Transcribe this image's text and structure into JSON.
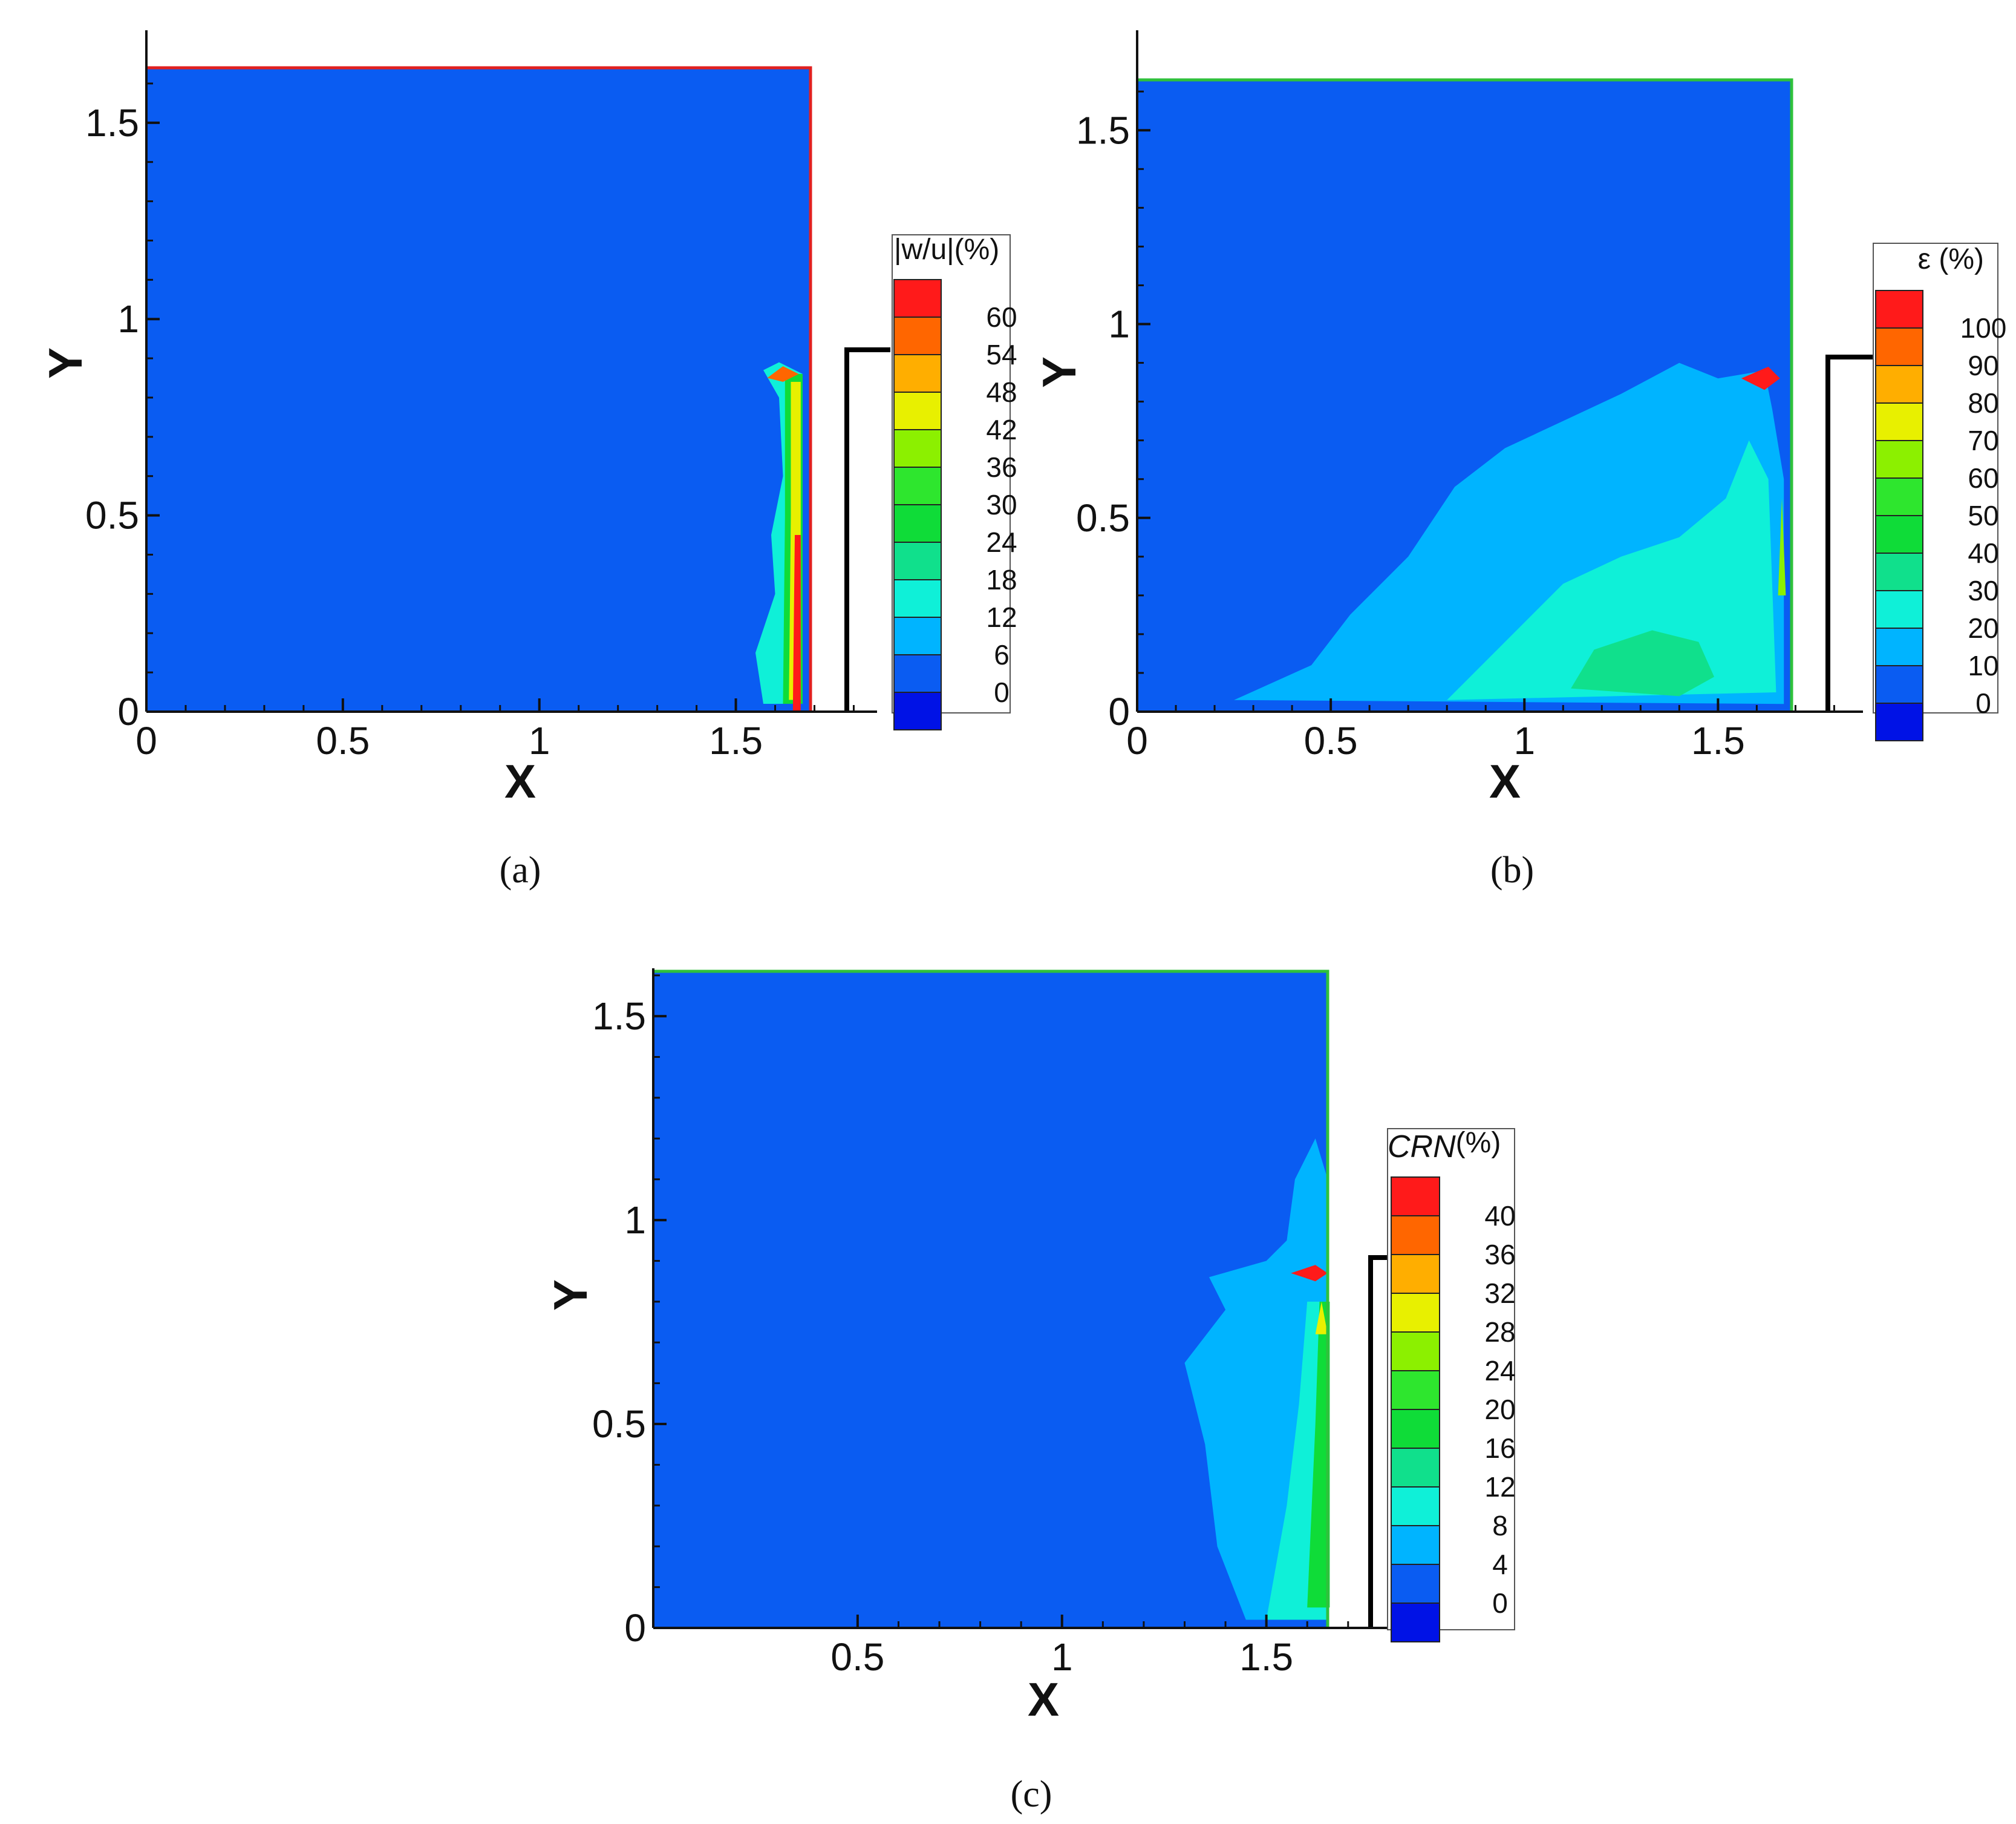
{
  "colors": {
    "background_blue": "#0a5cf2",
    "frame_red": "#e02020",
    "frame_green": "#2fc13c",
    "obstacle": "#000000"
  },
  "chart_data": [
    {
      "type": "heatmap",
      "panel": "a",
      "caption": "(a)",
      "xlabel": "X",
      "ylabel": "Y",
      "xlim": [
        0,
        1.9
      ],
      "ylim": [
        0,
        1.7
      ],
      "xticks": [
        0,
        0.5,
        1,
        1.5
      ],
      "xtick_labels": [
        "0",
        "0.5",
        "1",
        "1.5"
      ],
      "yticks": [
        0,
        0.5,
        1,
        1.5
      ],
      "ytick_labels": [
        "0",
        "0.5",
        "1",
        "1.5"
      ],
      "domain_x": [
        0,
        1.69
      ],
      "domain_y": [
        0,
        1.64
      ],
      "frame_color": "#e02020",
      "legend": {
        "title": "|w/u|(%)",
        "title_italic": "",
        "title_suffix": "",
        "levels": [
          "60",
          "54",
          "48",
          "42",
          "36",
          "30",
          "24",
          "18",
          "12",
          "6",
          "0"
        ]
      },
      "regions": [
        {
          "level": 12,
          "points": [
            [
              1.57,
              0.02
            ],
            [
              1.55,
              0.15
            ],
            [
              1.6,
              0.3
            ],
            [
              1.59,
              0.45
            ],
            [
              1.62,
              0.6
            ],
            [
              1.61,
              0.8
            ],
            [
              1.57,
              0.87
            ],
            [
              1.61,
              0.89
            ],
            [
              1.67,
              0.86
            ],
            [
              1.67,
              0.02
            ]
          ]
        },
        {
          "level": 24,
          "points": [
            [
              1.62,
              0.02
            ],
            [
              1.625,
              0.5
            ],
            [
              1.625,
              0.86
            ],
            [
              1.67,
              0.86
            ],
            [
              1.67,
              0.02
            ]
          ]
        },
        {
          "level": 42,
          "points": [
            [
              1.635,
              0.03
            ],
            [
              1.64,
              0.5
            ],
            [
              1.64,
              0.84
            ],
            [
              1.665,
              0.84
            ],
            [
              1.665,
              0.03
            ]
          ]
        },
        {
          "level": 60,
          "points": [
            [
              1.645,
              0.0
            ],
            [
              1.65,
              0.45
            ],
            [
              1.665,
              0.45
            ],
            [
              1.665,
              0.0
            ]
          ]
        },
        {
          "level": 54,
          "points": [
            [
              1.58,
              0.85
            ],
            [
              1.62,
              0.88
            ],
            [
              1.66,
              0.86
            ],
            [
              1.62,
              0.84
            ]
          ]
        }
      ]
    },
    {
      "type": "heatmap",
      "panel": "b",
      "caption": "(b)",
      "xlabel": "X",
      "ylabel": "Y",
      "xlim": [
        0,
        1.9
      ],
      "ylim": [
        0,
        1.7
      ],
      "xticks": [
        0,
        0.5,
        1,
        1.5
      ],
      "xtick_labels": [
        "0",
        "0.5",
        "1",
        "1.5"
      ],
      "yticks": [
        0,
        0.5,
        1,
        1.5
      ],
      "ytick_labels": [
        "0",
        "0.5",
        "1",
        "1.5"
      ],
      "domain_x": [
        0,
        1.69
      ],
      "domain_y": [
        0,
        1.63
      ],
      "frame_color": "#2fc13c",
      "legend": {
        "title": "ε (%)",
        "title_italic": "",
        "title_suffix": "",
        "levels": [
          "100",
          "90",
          "80",
          "70",
          "60",
          "50",
          "40",
          "30",
          "20",
          "10",
          "0"
        ]
      },
      "regions": [
        {
          "level": 10,
          "points": [
            [
              0.25,
              0.03
            ],
            [
              0.45,
              0.12
            ],
            [
              0.55,
              0.25
            ],
            [
              0.7,
              0.4
            ],
            [
              0.82,
              0.58
            ],
            [
              0.95,
              0.68
            ],
            [
              1.1,
              0.75
            ],
            [
              1.25,
              0.82
            ],
            [
              1.4,
              0.9
            ],
            [
              1.5,
              0.86
            ],
            [
              1.62,
              0.88
            ],
            [
              1.64,
              0.78
            ],
            [
              1.67,
              0.6
            ],
            [
              1.67,
              0.02
            ]
          ]
        },
        {
          "level": 20,
          "points": [
            [
              0.8,
              0.03
            ],
            [
              0.95,
              0.18
            ],
            [
              1.1,
              0.33
            ],
            [
              1.25,
              0.4
            ],
            [
              1.4,
              0.45
            ],
            [
              1.52,
              0.55
            ],
            [
              1.58,
              0.7
            ],
            [
              1.63,
              0.6
            ],
            [
              1.65,
              0.05
            ]
          ]
        },
        {
          "level": 30,
          "points": [
            [
              1.12,
              0.06
            ],
            [
              1.18,
              0.16
            ],
            [
              1.33,
              0.21
            ],
            [
              1.45,
              0.18
            ],
            [
              1.49,
              0.09
            ],
            [
              1.4,
              0.04
            ]
          ]
        },
        {
          "level": 100,
          "points": [
            [
              1.56,
              0.86
            ],
            [
              1.63,
              0.89
            ],
            [
              1.66,
              0.86
            ],
            [
              1.62,
              0.83
            ]
          ]
        },
        {
          "level": 60,
          "points": [
            [
              1.655,
              0.3
            ],
            [
              1.665,
              0.55
            ],
            [
              1.675,
              0.3
            ]
          ]
        }
      ]
    },
    {
      "type": "heatmap",
      "panel": "c",
      "caption": "(c)",
      "xlabel": "X",
      "ylabel": "Y",
      "xlim": [
        0,
        1.9
      ],
      "ylim": [
        0,
        1.62
      ],
      "xticks": [
        0.5,
        1,
        1.5
      ],
      "xtick_labels": [
        "0.5",
        "1",
        "1.5"
      ],
      "yticks": [
        0,
        0.5,
        1,
        1.5
      ],
      "ytick_labels": [
        "0",
        "0.5",
        "1",
        "1.5"
      ],
      "domain_x": [
        0,
        1.65
      ],
      "domain_y": [
        0,
        1.61
      ],
      "frame_color": "#2fc13c",
      "legend": {
        "title": "",
        "title_italic": "CRN",
        "title_suffix": "(%)",
        "levels": [
          "40",
          "36",
          "32",
          "28",
          "24",
          "20",
          "16",
          "12",
          "8",
          "4",
          "0"
        ]
      },
      "regions": [
        {
          "level": 4,
          "points": [
            [
              1.45,
              0.02
            ],
            [
              1.38,
              0.2
            ],
            [
              1.35,
              0.45
            ],
            [
              1.3,
              0.65
            ],
            [
              1.4,
              0.78
            ],
            [
              1.36,
              0.86
            ],
            [
              1.5,
              0.9
            ],
            [
              1.55,
              0.95
            ],
            [
              1.57,
              1.1
            ],
            [
              1.62,
              1.2
            ],
            [
              1.65,
              1.1
            ],
            [
              1.65,
              0.02
            ]
          ]
        },
        {
          "level": 8,
          "points": [
            [
              1.5,
              0.02
            ],
            [
              1.55,
              0.3
            ],
            [
              1.58,
              0.55
            ],
            [
              1.6,
              0.8
            ],
            [
              1.65,
              0.8
            ],
            [
              1.65,
              0.02
            ]
          ]
        },
        {
          "level": 16,
          "points": [
            [
              1.6,
              0.05
            ],
            [
              1.62,
              0.5
            ],
            [
              1.63,
              0.8
            ],
            [
              1.655,
              0.8
            ],
            [
              1.655,
              0.05
            ]
          ]
        },
        {
          "level": 40,
          "points": [
            [
              1.56,
              0.87
            ],
            [
              1.62,
              0.89
            ],
            [
              1.65,
              0.87
            ],
            [
              1.62,
              0.85
            ]
          ]
        },
        {
          "level": 28,
          "points": [
            [
              1.62,
              0.72
            ],
            [
              1.635,
              0.8
            ],
            [
              1.65,
              0.72
            ]
          ]
        }
      ]
    }
  ]
}
